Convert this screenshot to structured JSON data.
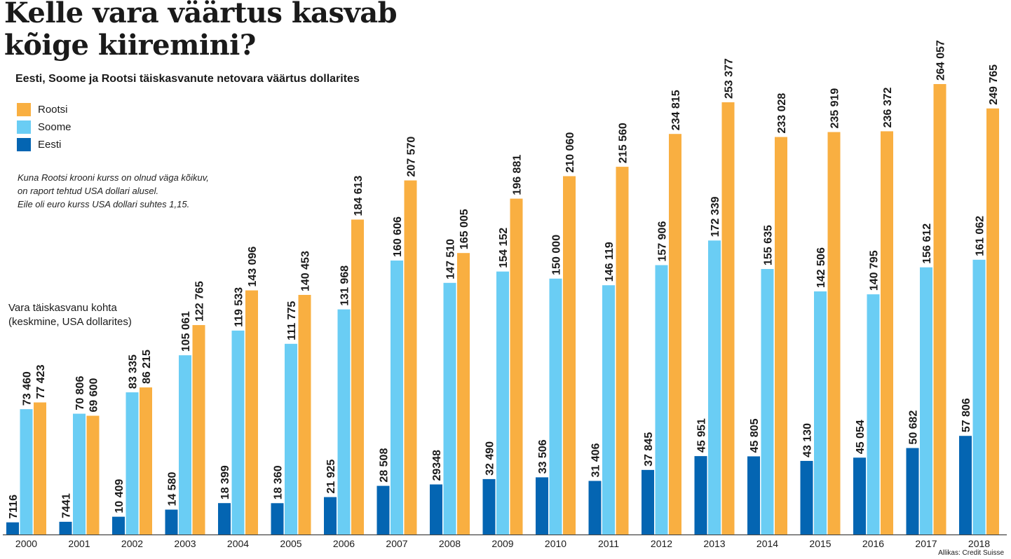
{
  "title_line1": "Kelle vara väärtus kasvab",
  "title_line2": "kõige kiiremini?",
  "subtitle": "Eesti, Soome ja Rootsi täiskasvanute netovara väärtus dollarites",
  "legend": [
    {
      "label": "Rootsi",
      "color": "#F9AF41"
    },
    {
      "label": "Soome",
      "color": "#6ACDF4"
    },
    {
      "label": "Eesti",
      "color": "#0465B2"
    }
  ],
  "note": [
    "Kuna Rootsi krooni kurss on olnud väga kõikuv,",
    "on raport tehtud USA dollari alusel.",
    "Eile oli euro kurss USA dollari suhtes 1,15."
  ],
  "axis_label": [
    "Vara täiskasvanu kohta",
    "(keskmine, USA dollarites)"
  ],
  "source": "Allikas: Credit Suisse",
  "chart_data": {
    "type": "bar",
    "title": "Kelle vara väärtus kasvab kõige kiiremini?",
    "ylabel": "Vara täiskasvanu kohta (keskmine, USA dollarites)",
    "xlabel": "",
    "ylim": [
      0,
      264057
    ],
    "categories": [
      "2000",
      "2001",
      "2002",
      "2003",
      "2004",
      "2005",
      "2006",
      "2007",
      "2008",
      "2009",
      "2010",
      "2011",
      "2012",
      "2013",
      "2014",
      "2015",
      "2016",
      "2017",
      "2018"
    ],
    "series": [
      {
        "name": "Eesti",
        "color": "#0465B2",
        "values": [
          7116,
          7441,
          10409,
          14580,
          18399,
          18360,
          21925,
          28508,
          29348,
          32490,
          33506,
          31406,
          37845,
          45951,
          45805,
          43130,
          45054,
          50682,
          57806
        ],
        "labels": [
          "7116",
          "7441",
          "10 409",
          "14 580",
          "18 399",
          "18 360",
          "21 925",
          "28 508",
          "29348",
          "32 490",
          "33 506",
          "31 406",
          "37 845",
          "45 951",
          "45 805",
          "43 130",
          "45 054",
          "50 682",
          "57 806"
        ]
      },
      {
        "name": "Soome",
        "color": "#6ACDF4",
        "values": [
          73460,
          70806,
          83335,
          105061,
          119533,
          111775,
          131968,
          160606,
          147510,
          154152,
          150000,
          146119,
          157906,
          172339,
          155635,
          142506,
          140795,
          156612,
          161062
        ],
        "labels": [
          "73 460",
          "70 806",
          "83 335",
          "105 061",
          "119 533",
          "111 775",
          "131 968",
          "160 606",
          "147 510",
          "154 152",
          "150 000",
          "146 119",
          "157 906",
          "172 339",
          "155 635",
          "142 506",
          "140 795",
          "156 612",
          "161 062"
        ]
      },
      {
        "name": "Rootsi",
        "color": "#F9AF41",
        "values": [
          77423,
          69600,
          86215,
          122765,
          143096,
          140453,
          184613,
          207570,
          165005,
          196881,
          210060,
          215560,
          234815,
          253377,
          233028,
          235919,
          236372,
          264057,
          249765
        ],
        "labels": [
          "77 423",
          "69 600",
          "86 215",
          "122 765",
          "143 096",
          "140 453",
          "184 613",
          "207 570",
          "165 005",
          "196 881",
          "210 060",
          "215 560",
          "234 815",
          "253 377",
          "233 028",
          "235 919",
          "236 372",
          "264 057",
          "249 765"
        ]
      }
    ]
  }
}
